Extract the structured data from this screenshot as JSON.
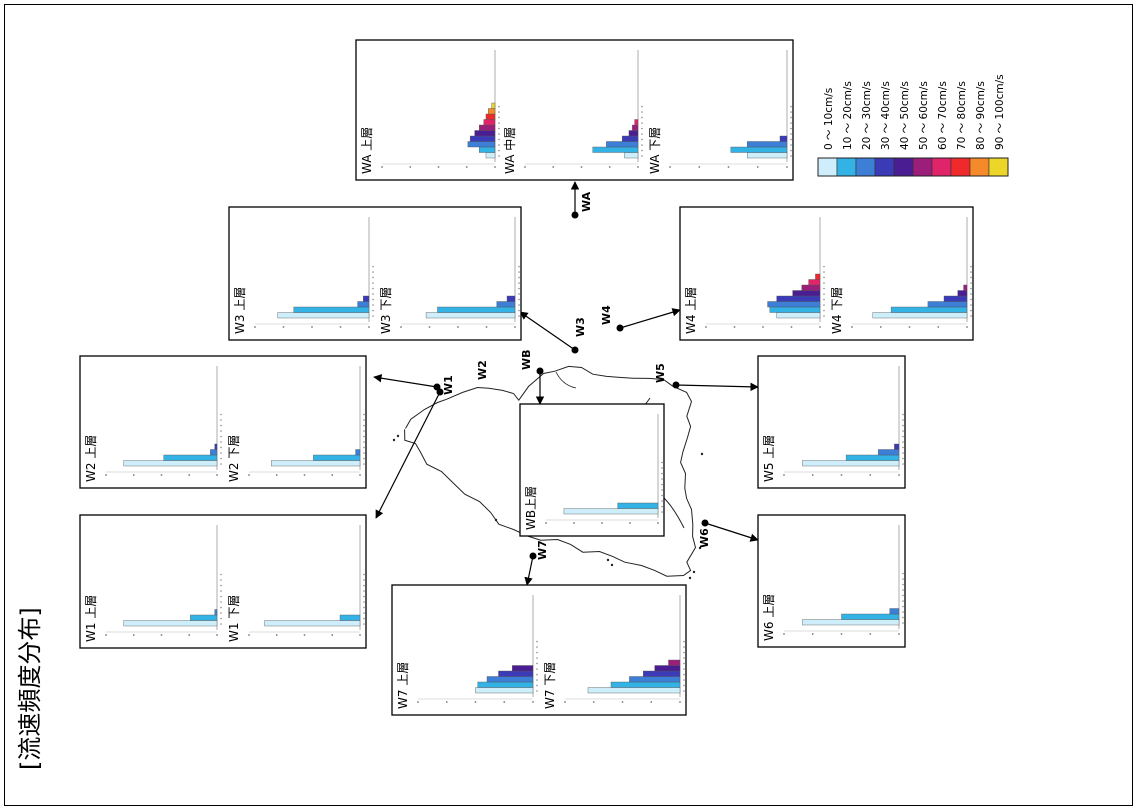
{
  "page_title": "[流速頻度分布]",
  "legend": {
    "bins": [
      {
        "label": "0 ～ 10cm/s",
        "color": "#cdeefa"
      },
      {
        "label": "10 ～ 20cm/s",
        "color": "#33b2e5"
      },
      {
        "label": "20 ～ 30cm/s",
        "color": "#3d7fd6"
      },
      {
        "label": "30 ～ 40cm/s",
        "color": "#3b3bb8"
      },
      {
        "label": "40 ～ 50cm/s",
        "color": "#4a1e92"
      },
      {
        "label": "50 ～ 60cm/s",
        "color": "#9b1f7a"
      },
      {
        "label": "60 ～ 70cm/s",
        "color": "#e0246a"
      },
      {
        "label": "70 ～ 80cm/s",
        "color": "#f02a2a"
      },
      {
        "label": "80 ～ 90cm/s",
        "color": "#f58a2a"
      },
      {
        "label": "90 ～ 100cm/s",
        "color": "#ecd629"
      }
    ]
  },
  "stations": [
    {
      "id": "WA",
      "label": "WA",
      "panels": [
        {
          "title": "WA 上層",
          "values": [
            8,
            14,
            24,
            22,
            18,
            14,
            10,
            8,
            6,
            3
          ]
        },
        {
          "title": "WA 中層",
          "values": [
            12,
            40,
            28,
            14,
            8,
            5,
            3,
            0,
            0,
            0
          ]
        },
        {
          "title": "WA 下層",
          "values": [
            34,
            48,
            34,
            6,
            0,
            0,
            0,
            0,
            0,
            0
          ]
        }
      ]
    },
    {
      "id": "W3",
      "label": "W3",
      "panels": [
        {
          "title": "W3 上層",
          "values": [
            80,
            66,
            10,
            5,
            0,
            0,
            0,
            0,
            0,
            0
          ]
        },
        {
          "title": "W3 下層",
          "values": [
            78,
            68,
            16,
            7,
            0,
            0,
            0,
            0,
            0,
            0
          ]
        }
      ]
    },
    {
      "id": "W4",
      "label": "W4",
      "panels": [
        {
          "title": "W4 上層",
          "values": [
            38,
            44,
            46,
            38,
            24,
            16,
            10,
            4,
            0,
            0
          ]
        },
        {
          "title": "W4 下層",
          "values": [
            82,
            66,
            34,
            20,
            8,
            3,
            0,
            0,
            0,
            0
          ]
        }
      ]
    },
    {
      "id": "W2",
      "label": "W2",
      "panels": [
        {
          "title": "W2 上層",
          "values": [
            84,
            48,
            6,
            2,
            0,
            0,
            0,
            0,
            0,
            0
          ]
        },
        {
          "title": "W2 下層",
          "values": [
            80,
            42,
            4,
            0,
            0,
            0,
            0,
            0,
            0,
            0
          ]
        }
      ]
    },
    {
      "id": "WB",
      "label": "WB",
      "panels": [
        {
          "title": "WB上層",
          "values": [
            84,
            36,
            0,
            0,
            0,
            0,
            0,
            0,
            0,
            0
          ]
        }
      ]
    },
    {
      "id": "W5",
      "label": "W5",
      "panels": [
        {
          "title": "W5 上層",
          "values": [
            84,
            46,
            18,
            4,
            0,
            0,
            0,
            0,
            0,
            0
          ]
        }
      ]
    },
    {
      "id": "W1",
      "label": "W1",
      "panels": [
        {
          "title": "W1 上層",
          "values": [
            84,
            24,
            2,
            0,
            0,
            0,
            0,
            0,
            0,
            0
          ]
        },
        {
          "title": "W1 下層",
          "values": [
            86,
            18,
            0,
            0,
            0,
            0,
            0,
            0,
            0,
            0
          ]
        }
      ]
    },
    {
      "id": "W6",
      "label": "W6",
      "panels": [
        {
          "title": "W6 上層",
          "values": [
            84,
            50,
            8,
            0,
            0,
            0,
            0,
            0,
            0,
            0
          ]
        }
      ]
    },
    {
      "id": "W7",
      "label": "W7",
      "panels": [
        {
          "title": "W7 上層",
          "values": [
            50,
            48,
            40,
            30,
            18,
            0,
            0,
            0,
            0,
            0
          ]
        },
        {
          "title": "W7 下層",
          "values": [
            80,
            60,
            44,
            32,
            22,
            10,
            0,
            0,
            0,
            0
          ]
        }
      ]
    }
  ]
}
